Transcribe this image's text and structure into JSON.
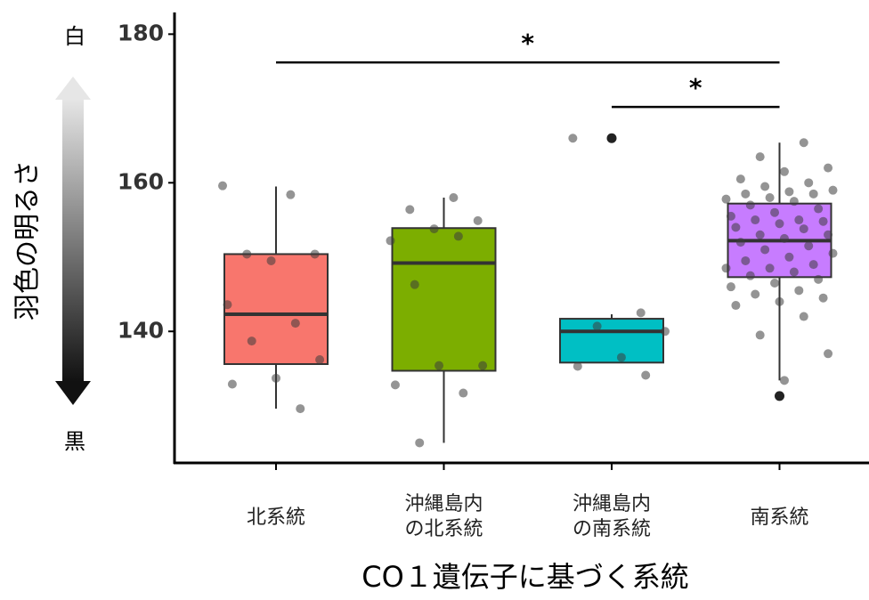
{
  "chart_data": {
    "type": "box",
    "ylabel": "羽色の明るさ",
    "xlabel": "CO１遺伝子に基づく系統",
    "scale_top": "白",
    "scale_bottom": "黒",
    "ylim": [
      122.3,
      182.8
    ],
    "yticks": [
      140,
      160,
      180
    ],
    "categories": [
      "北系統",
      "沖縄島内\nの北系統",
      "沖縄島内\nの南系統",
      "南系統"
    ],
    "boxes": [
      {
        "color": "#f8766d",
        "whisker_low": 129.6,
        "q1": 135.6,
        "median": 142.3,
        "q3": 150.4,
        "whisker_high": 159.5,
        "outliers": [],
        "points": [
          159.6,
          158.4,
          150.4,
          150.4,
          149.5,
          143.6,
          141.1,
          138.7,
          136.2,
          133.7,
          132.9,
          129.6
        ]
      },
      {
        "color": "#7cae00",
        "whisker_low": 125,
        "q1": 134.7,
        "median": 149.2,
        "q3": 153.9,
        "whisker_high": 158,
        "outliers": [],
        "points": [
          158,
          156.4,
          154.9,
          153.8,
          152.2,
          152.8,
          146.3,
          135.4,
          135.4,
          132.8,
          131.7,
          125
        ]
      },
      {
        "color": "#00bfc4",
        "whisker_low": 135.8,
        "q1": 135.8,
        "median": 140,
        "q3": 141.7,
        "whisker_high": 142.3,
        "outliers": [
          166
        ],
        "points": [
          166,
          142.5,
          140.7,
          140,
          136.5,
          135.3,
          134.1
        ]
      },
      {
        "color": "#c77cff",
        "whisker_low": 133.4,
        "q1": 147.3,
        "median": 152.2,
        "q3": 157.2,
        "whisker_high": 165.4,
        "outliers": [
          131.3
        ],
        "points": [
          165.4,
          163.5,
          162,
          161.5,
          160.5,
          160,
          159.5,
          159,
          158.8,
          158.5,
          158.5,
          158,
          157.8,
          157.5,
          157,
          156.5,
          156,
          155.5,
          155,
          155,
          154.8,
          154.5,
          154,
          153.8,
          153,
          153,
          152.5,
          152,
          151.5,
          151,
          150.5,
          150,
          149.5,
          149,
          148.5,
          148.5,
          148,
          147.5,
          147,
          146.5,
          146,
          145.5,
          145,
          144.5,
          144,
          143.5,
          142,
          139.5,
          137,
          133.4
        ]
      }
    ],
    "annotations": [
      {
        "from": 0,
        "to": 3,
        "y": 176.2,
        "label": "*"
      },
      {
        "from": 2,
        "to": 3,
        "y": 170.2,
        "label": "*"
      }
    ]
  }
}
